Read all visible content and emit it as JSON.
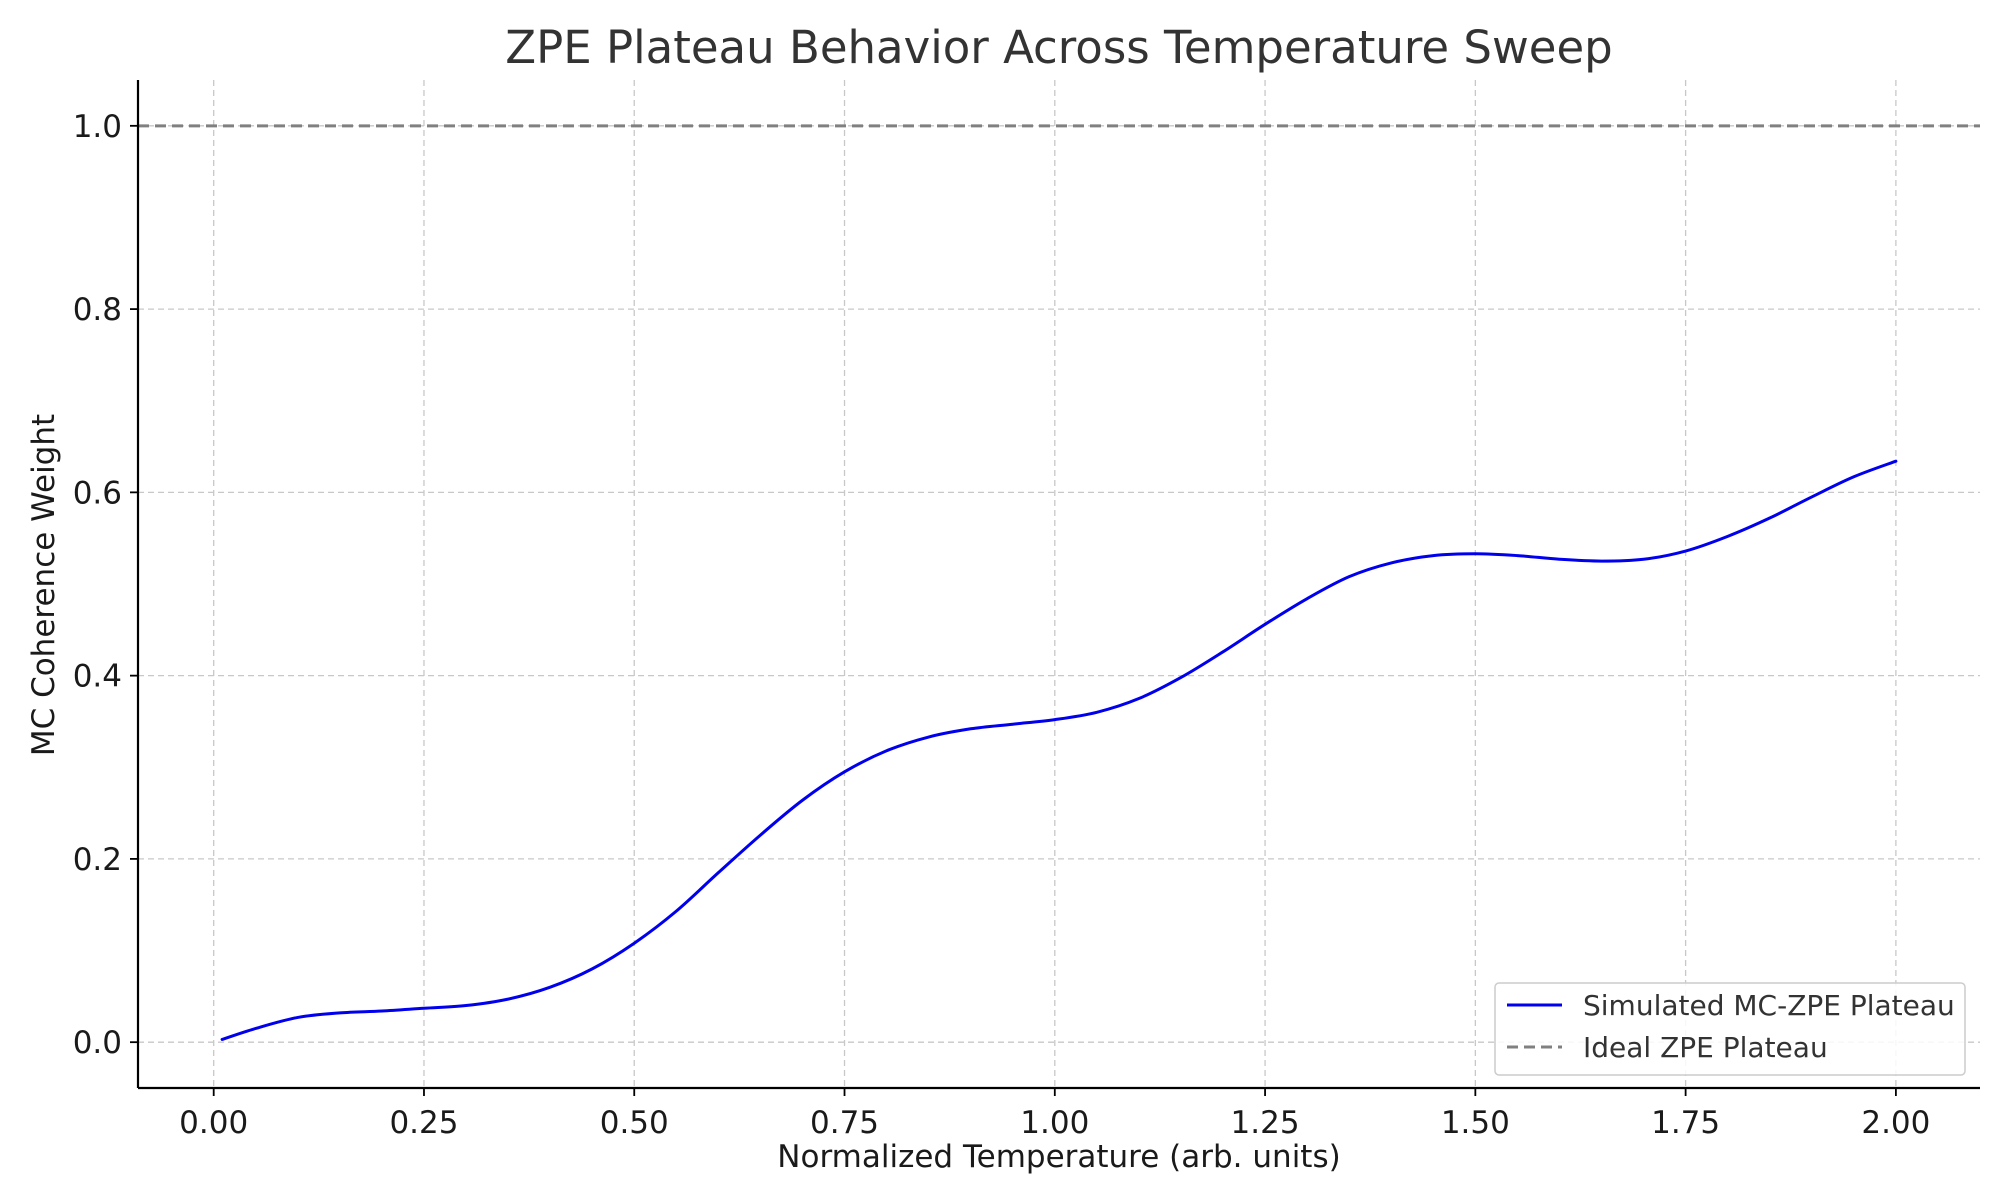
{
  "chart_data": {
    "type": "line",
    "title": "ZPE Plateau Behavior Across Temperature Sweep",
    "xlabel": "Normalized Temperature (arb. units)",
    "ylabel": "MC Coherence Weight",
    "xlim": [
      -0.09,
      2.1
    ],
    "ylim": [
      -0.05,
      1.05
    ],
    "xticks": [
      "0.00",
      "0.25",
      "0.50",
      "0.75",
      "1.00",
      "1.25",
      "1.50",
      "1.75",
      "2.00"
    ],
    "yticks": [
      "0.0",
      "0.2",
      "0.4",
      "0.6",
      "0.8",
      "1.0"
    ],
    "grid": true,
    "legend_position": "lower-right",
    "series": [
      {
        "name": "Simulated MC-ZPE Plateau",
        "color": "#0000ee",
        "style": "solid",
        "x": [
          0.01,
          0.05,
          0.1,
          0.15,
          0.2,
          0.25,
          0.3,
          0.35,
          0.4,
          0.45,
          0.5,
          0.55,
          0.6,
          0.65,
          0.7,
          0.75,
          0.8,
          0.85,
          0.9,
          0.95,
          1.0,
          1.05,
          1.1,
          1.15,
          1.2,
          1.25,
          1.3,
          1.35,
          1.4,
          1.45,
          1.5,
          1.55,
          1.6,
          1.65,
          1.7,
          1.75,
          1.8,
          1.85,
          1.9,
          1.95,
          2.0
        ],
        "y": [
          0.003,
          0.015,
          0.027,
          0.032,
          0.034,
          0.037,
          0.04,
          0.047,
          0.06,
          0.08,
          0.108,
          0.143,
          0.185,
          0.226,
          0.264,
          0.295,
          0.318,
          0.333,
          0.342,
          0.347,
          0.352,
          0.36,
          0.375,
          0.398,
          0.426,
          0.456,
          0.484,
          0.508,
          0.523,
          0.531,
          0.533,
          0.531,
          0.527,
          0.525,
          0.527,
          0.536,
          0.552,
          0.572,
          0.595,
          0.617,
          0.634
        ]
      },
      {
        "name": "Ideal ZPE Plateau",
        "color": "#808080",
        "style": "dashed",
        "y_constant": 1.0
      }
    ]
  }
}
